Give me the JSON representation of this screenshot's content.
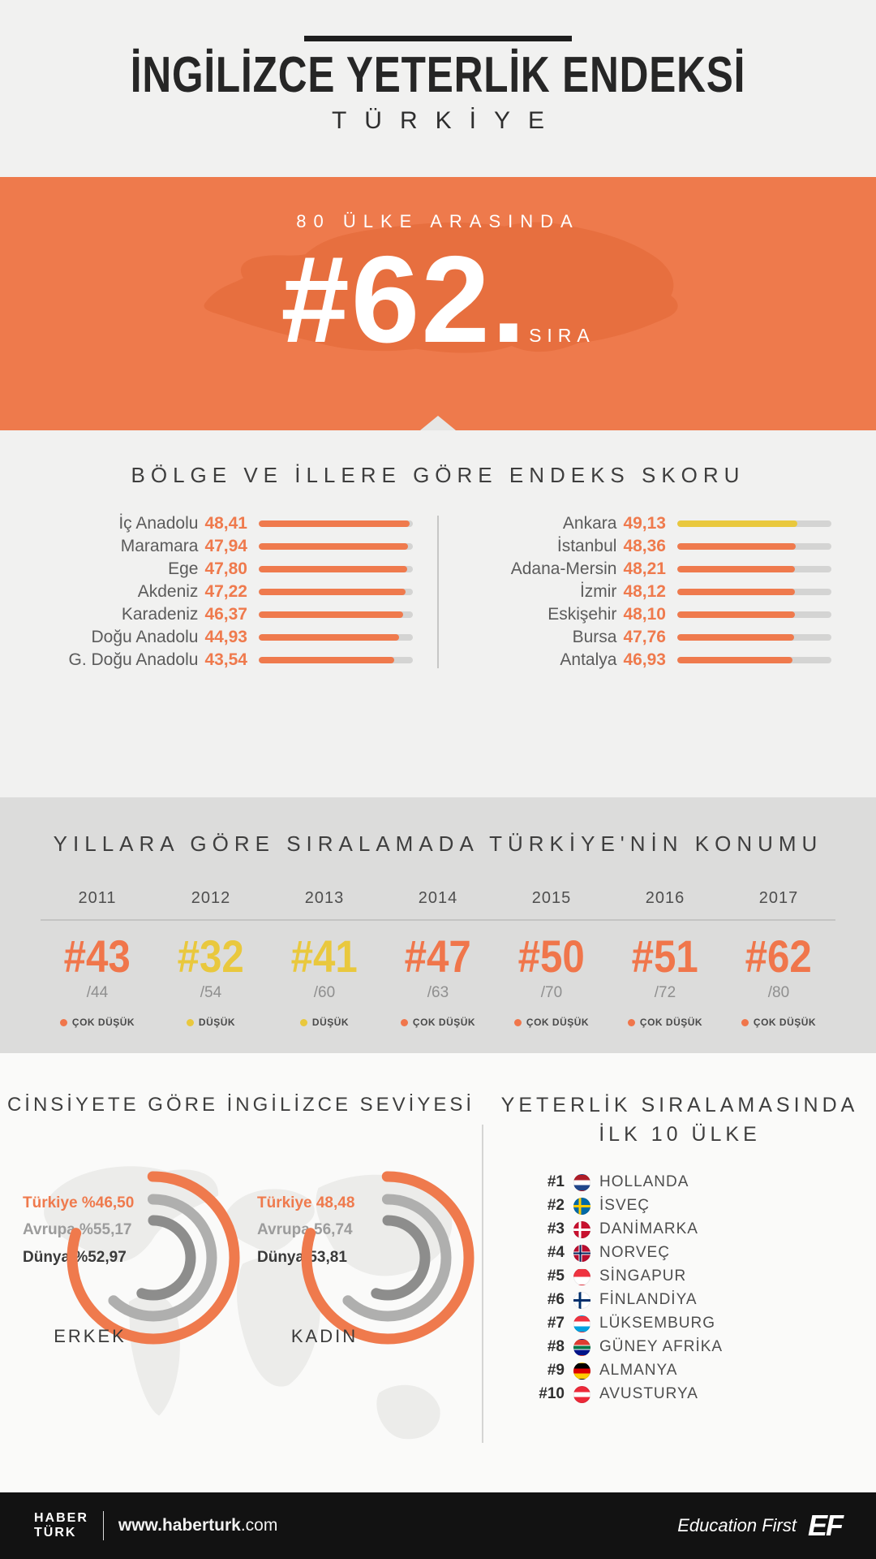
{
  "header": {
    "title": "İNGİLİZCE YETERLİK ENDEKSİ",
    "subtitle": "TÜRKİYE"
  },
  "hero": {
    "context": "80 ÜLKE ARASINDA",
    "rank": "#62.",
    "suffix": "SIRA"
  },
  "chart_data": [
    {
      "id": "region-scores",
      "type": "bar",
      "title": "BÖLGE VE İLLERE GÖRE ENDEKS SKORU",
      "left": [
        {
          "label": "İç Anadolu",
          "display": "48,41",
          "value": 48.41,
          "pct": 97.8,
          "color": "#EF7A4D"
        },
        {
          "label": "Maramara",
          "display": "47,94",
          "value": 47.94,
          "pct": 96.8,
          "color": "#EF7A4D"
        },
        {
          "label": "Ege",
          "display": "47,80",
          "value": 47.8,
          "pct": 96.5,
          "color": "#EF7A4D"
        },
        {
          "label": "Akdeniz",
          "display": "47,22",
          "value": 47.22,
          "pct": 95.4,
          "color": "#EF7A4D"
        },
        {
          "label": "Karadeniz",
          "display": "46,37",
          "value": 46.37,
          "pct": 93.7,
          "color": "#EF7A4D"
        },
        {
          "label": "Doğu Anadolu",
          "display": "44,93",
          "value": 44.93,
          "pct": 90.8,
          "color": "#EF7A4D"
        },
        {
          "label": "G. Doğu Anadolu",
          "display": "43,54",
          "value": 43.54,
          "pct": 88.0,
          "color": "#EF7A4D"
        }
      ],
      "right": [
        {
          "label": "Ankara",
          "display": "49,13",
          "value": 49.13,
          "pct": 78.0,
          "color": "#E9C83D"
        },
        {
          "label": "İstanbul",
          "display": "48,36",
          "value": 48.36,
          "pct": 76.8,
          "color": "#EF7A4D"
        },
        {
          "label": "Adana-Mersin",
          "display": "48,21",
          "value": 48.21,
          "pct": 76.5,
          "color": "#EF7A4D"
        },
        {
          "label": "İzmir",
          "display": "48,12",
          "value": 48.12,
          "pct": 76.4,
          "color": "#EF7A4D"
        },
        {
          "label": "Eskişehir",
          "display": "48,10",
          "value": 48.1,
          "pct": 76.3,
          "color": "#EF7A4D"
        },
        {
          "label": "Bursa",
          "display": "47,76",
          "value": 47.76,
          "pct": 75.8,
          "color": "#EF7A4D"
        },
        {
          "label": "Antalya",
          "display": "46,93",
          "value": 46.93,
          "pct": 74.5,
          "color": "#EF7A4D"
        }
      ]
    },
    {
      "id": "yearly-rank",
      "type": "table",
      "title": "YILLARA GÖRE SIRALAMADA TÜRKİYE'NİN KONUMU",
      "items": [
        {
          "year": "2011",
          "rank": "#43",
          "total": "/44",
          "level": "ÇOK DÜŞÜK",
          "color": "#F0764B"
        },
        {
          "year": "2012",
          "rank": "#32",
          "total": "/54",
          "level": "DÜŞÜK",
          "color": "#E9C83D"
        },
        {
          "year": "2013",
          "rank": "#41",
          "total": "/60",
          "level": "DÜŞÜK",
          "color": "#E9C83D"
        },
        {
          "year": "2014",
          "rank": "#47",
          "total": "/63",
          "level": "ÇOK DÜŞÜK",
          "color": "#F0764B"
        },
        {
          "year": "2015",
          "rank": "#50",
          "total": "/70",
          "level": "ÇOK DÜŞÜK",
          "color": "#F0764B"
        },
        {
          "year": "2016",
          "rank": "#51",
          "total": "/72",
          "level": "ÇOK DÜŞÜK",
          "color": "#F0764B"
        },
        {
          "year": "2017",
          "rank": "#62",
          "total": "/80",
          "level": "ÇOK DÜŞÜK",
          "color": "#F0764B"
        }
      ]
    },
    {
      "id": "gender-levels",
      "type": "gauge",
      "title": "CİNSİYETE GÖRE İNGİLİZCE SEVİYESİ",
      "charts": [
        {
          "name": "ERKEK",
          "rows": [
            {
              "label": "Türkiye",
              "display": "%46,50",
              "value": 46.5,
              "color": "#EF7A4D"
            },
            {
              "label": "Avrupa",
              "display": "%55,17",
              "value": 55.17,
              "color": "#9C9C9C"
            },
            {
              "label": "Dünya",
              "display": "%52,97",
              "value": 52.97,
              "color": "#3A3A3A"
            }
          ]
        },
        {
          "name": "KADIN",
          "rows": [
            {
              "label": "Türkiye",
              "display": "48,48",
              "value": 48.48,
              "color": "#EF7A4D"
            },
            {
              "label": "Avrupa",
              "display": "56,74",
              "value": 56.74,
              "color": "#9C9C9C"
            },
            {
              "label": "Dünya",
              "display": "53,81",
              "value": 53.81,
              "color": "#3A3A3A"
            }
          ]
        }
      ]
    },
    {
      "id": "top10",
      "type": "table",
      "title_line1": "YETERLİK SIRALAMASINDA",
      "title_line2": "İLK 10 ÜLKE",
      "items": [
        {
          "rank": "#1",
          "country": "HOLLANDA",
          "flag": "nl"
        },
        {
          "rank": "#2",
          "country": "İSVEÇ",
          "flag": "se"
        },
        {
          "rank": "#3",
          "country": "DANİMARKA",
          "flag": "dk"
        },
        {
          "rank": "#4",
          "country": "NORVEÇ",
          "flag": "no"
        },
        {
          "rank": "#5",
          "country": "SİNGAPUR",
          "flag": "sg"
        },
        {
          "rank": "#6",
          "country": "FİNLANDİYA",
          "flag": "fi"
        },
        {
          "rank": "#7",
          "country": "LÜKSEMBURG",
          "flag": "lu"
        },
        {
          "rank": "#8",
          "country": "GÜNEY AFRİKA",
          "flag": "za"
        },
        {
          "rank": "#9",
          "country": "ALMANYA",
          "flag": "de"
        },
        {
          "rank": "#10",
          "country": "AVUSTURYA",
          "flag": "at"
        }
      ]
    }
  ],
  "footer": {
    "logo_line1": "HABER",
    "logo_line2": "TÜRK",
    "url_bold": "www.haberturk",
    "url_rest": ".com",
    "brand_text": "Education First",
    "brand_logo": "EF"
  },
  "colors": {
    "accent_orange": "#EF7A4D",
    "accent_yellow": "#E9C83D",
    "hero_bg": "#EE7A4C"
  }
}
